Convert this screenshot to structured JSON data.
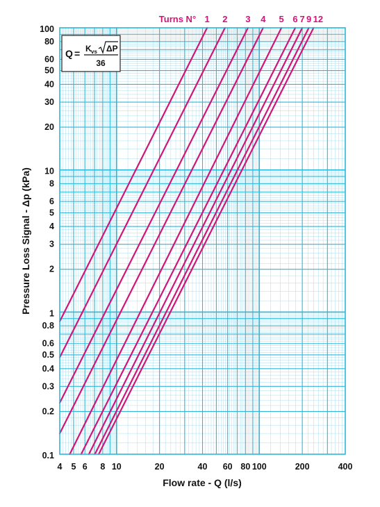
{
  "chart_data": {
    "type": "line",
    "xscale": "log",
    "yscale": "log",
    "xlim": [
      4,
      400
    ],
    "ylim": [
      0.1,
      100
    ],
    "xlabel": "Flow rate - Q (l/s)",
    "ylabel": "Pressure Loss Signal  - Δp (kPa)",
    "x_ticks": [
      "4",
      "5",
      "6",
      "8",
      "10",
      "20",
      "40",
      "60",
      "80",
      "100",
      "200",
      "400"
    ],
    "x_tick_values": [
      4,
      5,
      6,
      8,
      10,
      20,
      40,
      60,
      80,
      100,
      200,
      400
    ],
    "y_ticks": [
      "100",
      "80",
      "60",
      "50",
      "40",
      "30",
      "20",
      "10",
      "8",
      "6",
      "5",
      "4",
      "3",
      "2",
      "1",
      "0.8",
      "0.6",
      "0.5",
      "0.4",
      "0.3",
      "0.2",
      "0.1"
    ],
    "y_tick_values": [
      100,
      80,
      60,
      50,
      40,
      30,
      20,
      10,
      8,
      6,
      5,
      4,
      3,
      2,
      1,
      0.8,
      0.6,
      0.5,
      0.4,
      0.3,
      0.2,
      0.1
    ],
    "legend_title": "Turns N°",
    "series": [
      {
        "name": "1",
        "x": [
          4.0,
          43.1
        ],
        "y": [
          0.86,
          100
        ]
      },
      {
        "name": "2",
        "x": [
          4.0,
          57.5
        ],
        "y": [
          0.48,
          100
        ]
      },
      {
        "name": "3",
        "x": [
          4.0,
          83.3
        ],
        "y": [
          0.23,
          100
        ]
      },
      {
        "name": "4",
        "x": [
          4.0,
          106.4
        ],
        "y": [
          0.14,
          100
        ]
      },
      {
        "name": "5",
        "x": [
          4.7,
          142.9
        ],
        "y": [
          0.1,
          100
        ]
      },
      {
        "name": "6",
        "x": [
          5.65,
          178.6
        ],
        "y": [
          0.1,
          100
        ]
      },
      {
        "name": "7",
        "x": [
          6.4,
          200
        ],
        "y": [
          0.1,
          100
        ]
      },
      {
        "name": "9",
        "x": [
          7.05,
          222.2
        ],
        "y": [
          0.1,
          100
        ]
      },
      {
        "name": "12",
        "x": [
          7.5,
          240
        ],
        "y": [
          0.1,
          100
        ]
      }
    ],
    "colors": {
      "curve": "#d0157a",
      "grid": "#2eb7d8",
      "grid_minor": "#a9def0",
      "text": "#111111"
    },
    "grid": true,
    "legend": "top"
  },
  "formula": {
    "q": "Q",
    "equals": "=",
    "kvs": "K",
    "kvs_sub": "vs",
    "delta_p": "ΔP",
    "denominator": "36"
  }
}
